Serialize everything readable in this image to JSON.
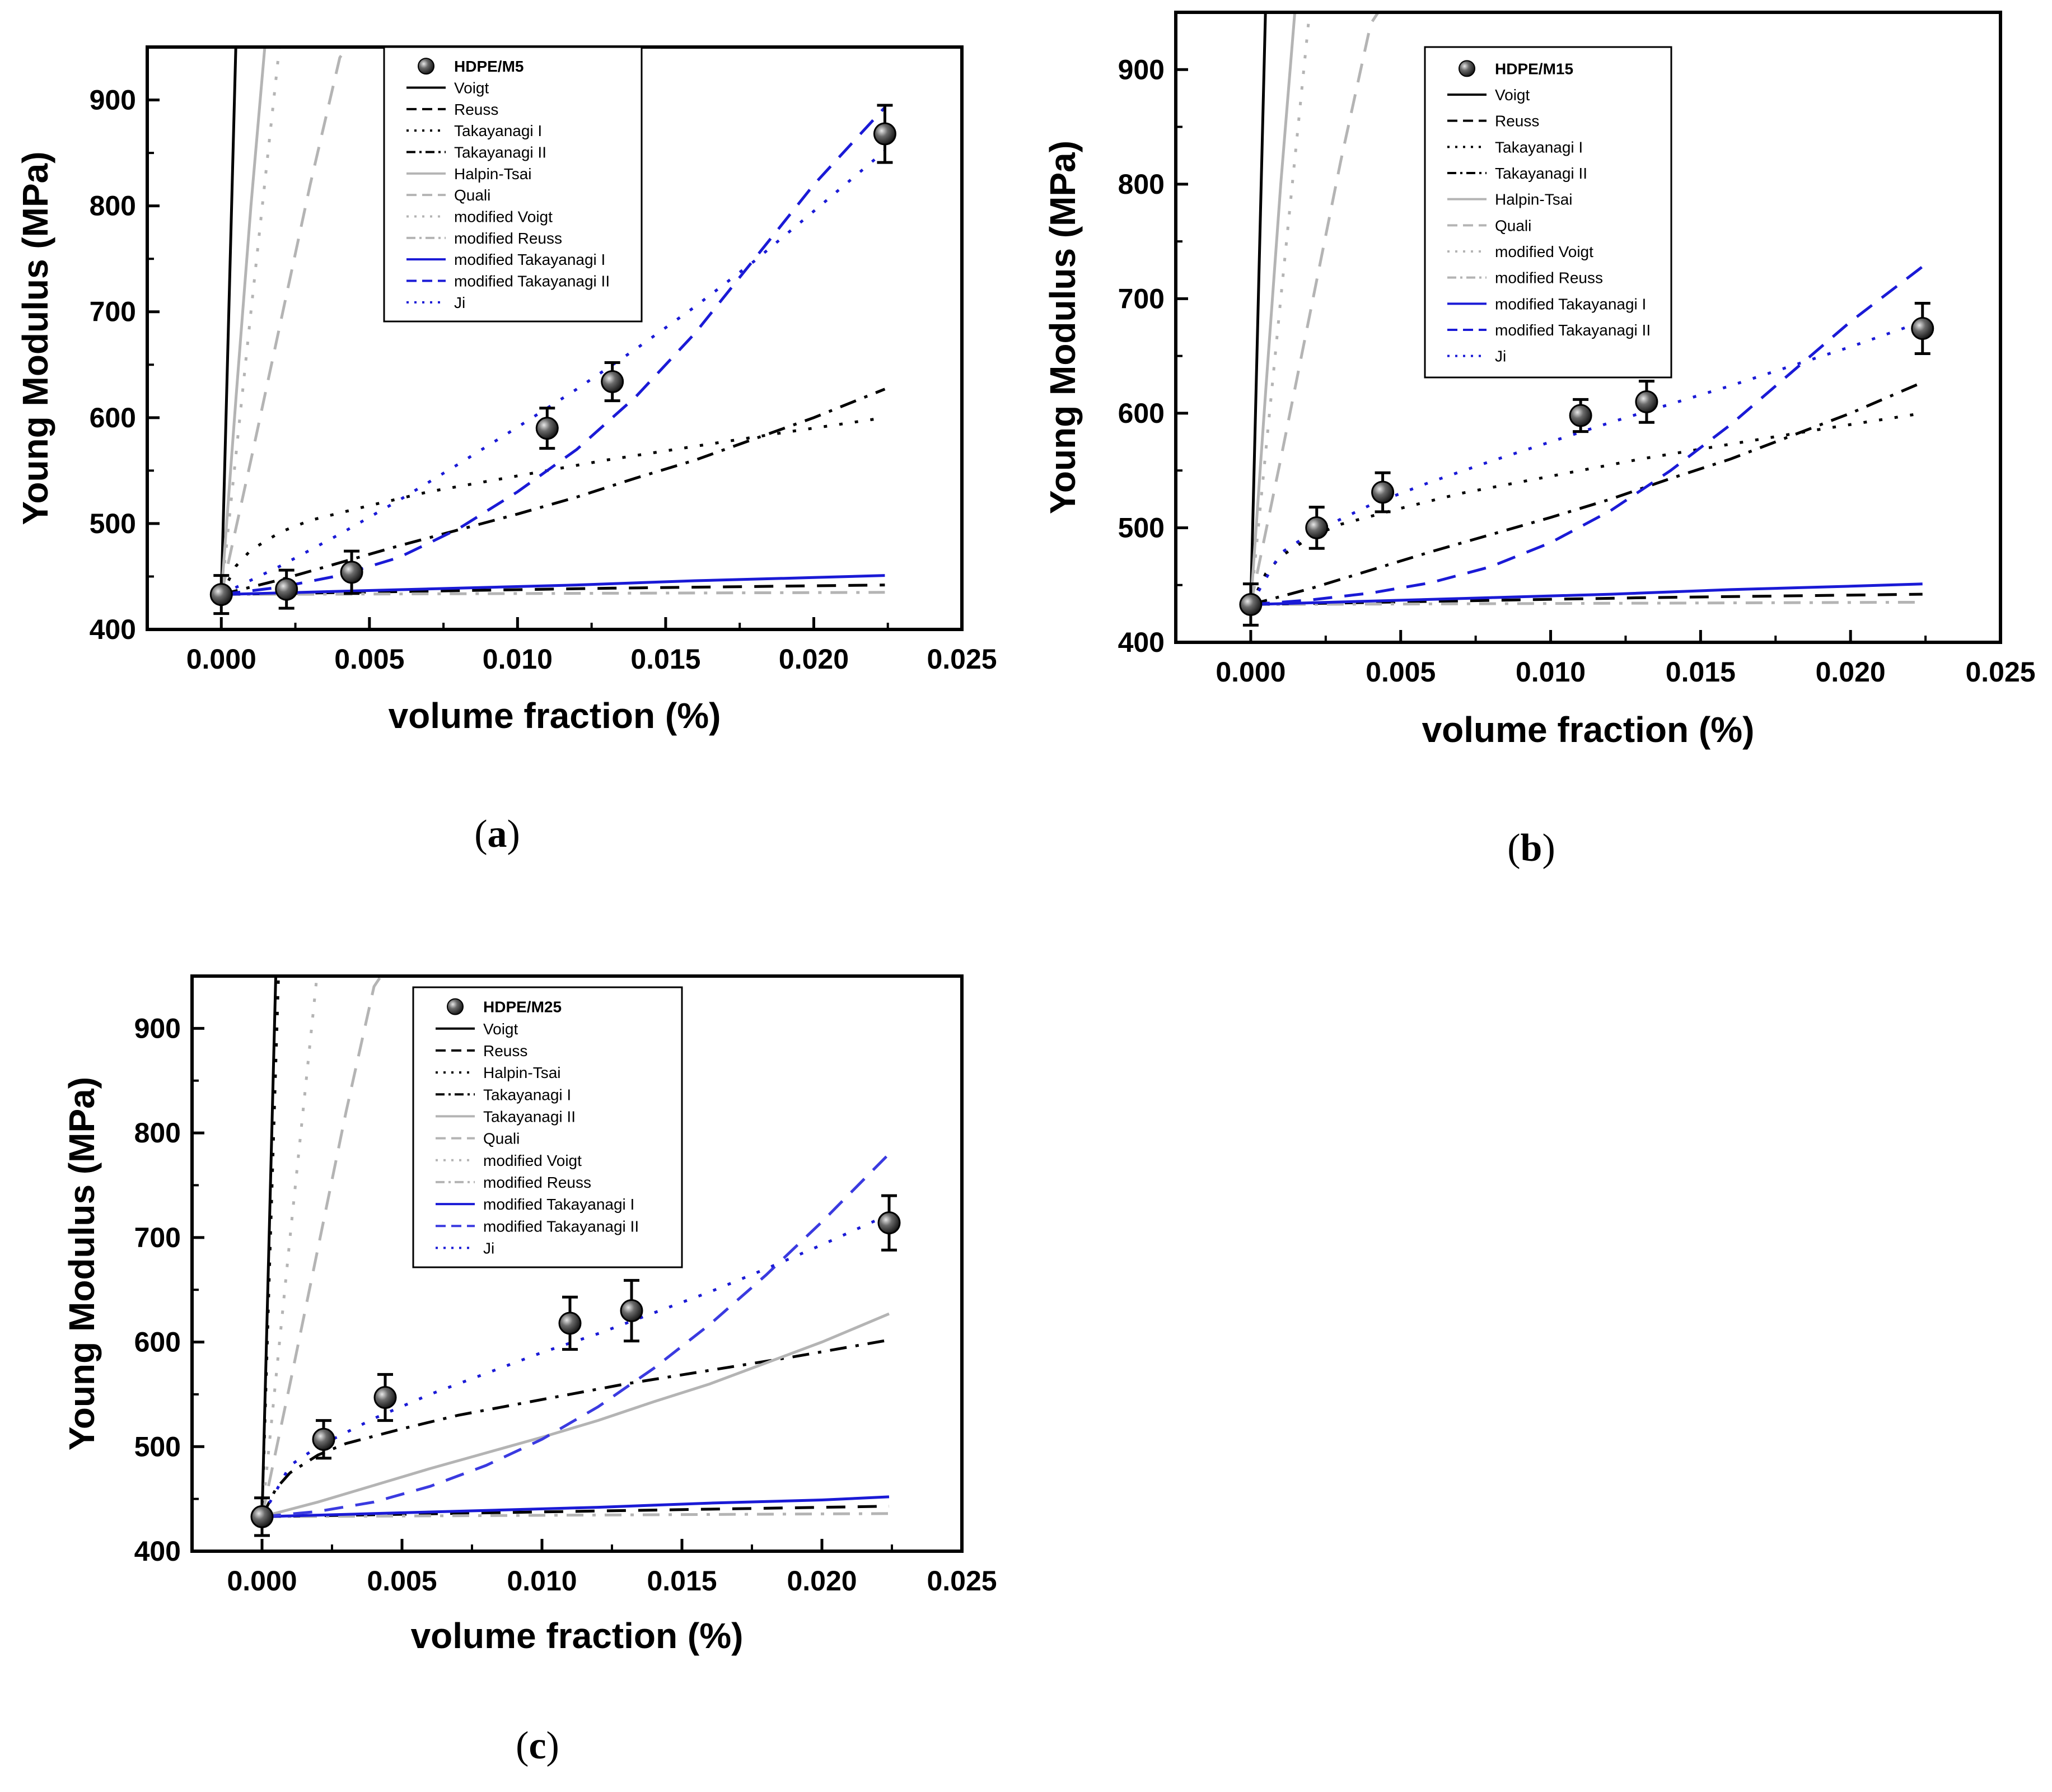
{
  "figure_captions": [
    {
      "open": "(",
      "letter": "a",
      "close": ")"
    },
    {
      "open": "(",
      "letter": "b",
      "close": ")"
    },
    {
      "open": "(",
      "letter": "c",
      "close": ")"
    }
  ],
  "chart_data": [
    {
      "id": "a",
      "type": "line+scatter",
      "xlabel": "volume fraction (%)",
      "ylabel": "Young Modulus (MPa)",
      "xlim": [
        -0.0025,
        0.025
      ],
      "ylim": [
        400,
        950
      ],
      "xticks": [
        0.0,
        0.005,
        0.01,
        0.015,
        0.02,
        0.025
      ],
      "xtick_labels": [
        "0.000",
        "0.005",
        "0.010",
        "0.015",
        "0.020",
        "0.025"
      ],
      "yticks": [
        400,
        500,
        600,
        700,
        800,
        900
      ],
      "ytick_labels": [
        "400",
        "500",
        "600",
        "700",
        "800",
        "900"
      ],
      "legend_position": "top-center",
      "experimental": {
        "name": "HDPE/M5",
        "x": [
          0.0,
          0.0022,
          0.0044,
          0.011,
          0.0132,
          0.0224
        ],
        "y": [
          433,
          438,
          454,
          590,
          634,
          868
        ],
        "err": [
          18,
          18,
          20,
          19,
          18,
          27
        ]
      },
      "series": [
        {
          "name": "Voigt",
          "color": "#000000",
          "dash": "solid",
          "x": [
            0,
            0.0005
          ],
          "y": [
            433,
            960
          ]
        },
        {
          "name": "Reuss",
          "color": "#000000",
          "dash": "dash",
          "x": [
            0,
            0.0022,
            0.0044,
            0.011,
            0.0132,
            0.0224
          ],
          "y": [
            433,
            434,
            435,
            438,
            439,
            442
          ]
        },
        {
          "name": "Takayanagi I",
          "color": "#000000",
          "dash": "dot",
          "x": [
            0,
            0.0005,
            0.001,
            0.002,
            0.003,
            0.005,
            0.007,
            0.01,
            0.013,
            0.016,
            0.019,
            0.0224
          ],
          "y": [
            433,
            460,
            475,
            492,
            503,
            517,
            530,
            545,
            560,
            573,
            586,
            600
          ]
        },
        {
          "name": "Takayanagi II",
          "color": "#000000",
          "dash": "dashdot",
          "x": [
            0,
            0.002,
            0.004,
            0.006,
            0.008,
            0.01,
            0.012,
            0.014,
            0.016,
            0.018,
            0.02,
            0.0224
          ],
          "y": [
            433,
            447,
            463,
            479,
            494,
            509,
            525,
            543,
            560,
            580,
            600,
            627
          ]
        },
        {
          "name": "Halpin-Tsai",
          "color": "#b4b4b4",
          "dash": "solid",
          "x": [
            0,
            0.0005,
            0.001,
            0.0015
          ],
          "y": [
            433,
            620,
            800,
            960
          ]
        },
        {
          "name": "Quali",
          "color": "#b4b4b4",
          "dash": "dash",
          "x": [
            0,
            0.001,
            0.002,
            0.003,
            0.004,
            0.0045
          ],
          "y": [
            433,
            560,
            690,
            820,
            940,
            960
          ]
        },
        {
          "name": "modified Voigt",
          "color": "#b4b4b4",
          "dash": "dot",
          "x": [
            0,
            0.001,
            0.0015,
            0.002
          ],
          "y": [
            433,
            700,
            830,
            960
          ]
        },
        {
          "name": "modified Reuss",
          "color": "#b4b4b4",
          "dash": "dashdot",
          "x": [
            0,
            0.0224
          ],
          "y": [
            433,
            435
          ]
        },
        {
          "name": "modified Takayanagi I",
          "color": "#1a1ad6",
          "dash": "solid",
          "x": [
            0,
            0.004,
            0.008,
            0.012,
            0.016,
            0.02,
            0.0224
          ],
          "y": [
            433,
            436,
            439,
            442,
            446,
            449,
            451
          ]
        },
        {
          "name": "modified Takayanagi II",
          "color": "#1a1ad6",
          "dash": "dash",
          "x": [
            0,
            0.002,
            0.004,
            0.006,
            0.008,
            0.01,
            0.012,
            0.014,
            0.016,
            0.018,
            0.02,
            0.0224
          ],
          "y": [
            433,
            440,
            451,
            468,
            495,
            530,
            570,
            620,
            680,
            750,
            820,
            893
          ]
        },
        {
          "name": "Ji",
          "color": "#1a1ad6",
          "dash": "dot",
          "x": [
            0,
            0.002,
            0.004,
            0.006,
            0.008,
            0.01,
            0.012,
            0.014,
            0.016,
            0.018,
            0.02,
            0.0224
          ],
          "y": [
            433,
            460,
            490,
            522,
            556,
            591,
            627,
            665,
            705,
            748,
            795,
            852
          ]
        }
      ]
    },
    {
      "id": "b",
      "type": "line+scatter",
      "xlabel": "volume fraction (%)",
      "ylabel": "Young Modulus (MPa)",
      "xlim": [
        -0.0025,
        0.025
      ],
      "ylim": [
        400,
        950
      ],
      "xticks": [
        0.0,
        0.005,
        0.01,
        0.015,
        0.02,
        0.025
      ],
      "xtick_labels": [
        "0.000",
        "0.005",
        "0.010",
        "0.015",
        "0.020",
        "0.025"
      ],
      "yticks": [
        400,
        500,
        600,
        700,
        800,
        900
      ],
      "ytick_labels": [
        "400",
        "500",
        "600",
        "700",
        "800",
        "900"
      ],
      "legend_position": "top-center",
      "experimental": {
        "name": "HDPE/M15",
        "x": [
          0.0,
          0.0022,
          0.0044,
          0.011,
          0.0132,
          0.0224
        ],
        "y": [
          433,
          500,
          531,
          598,
          610,
          674
        ],
        "err": [
          18,
          18,
          17,
          14,
          18,
          22
        ]
      },
      "series": [
        {
          "name": "Voigt",
          "color": "#000000",
          "dash": "solid",
          "x": [
            0,
            0.0005
          ],
          "y": [
            433,
            960
          ]
        },
        {
          "name": "Reuss",
          "color": "#000000",
          "dash": "dash",
          "x": [
            0,
            0.0022,
            0.0044,
            0.011,
            0.0132,
            0.0224
          ],
          "y": [
            433,
            434,
            435,
            438,
            439,
            442
          ]
        },
        {
          "name": "Takayanagi I",
          "color": "#000000",
          "dash": "dot",
          "x": [
            0,
            0.0005,
            0.001,
            0.002,
            0.003,
            0.005,
            0.007,
            0.01,
            0.013,
            0.016,
            0.019,
            0.0224
          ],
          "y": [
            433,
            460,
            475,
            492,
            503,
            517,
            530,
            545,
            560,
            573,
            586,
            600
          ]
        },
        {
          "name": "Takayanagi II",
          "color": "#000000",
          "dash": "dashdot",
          "x": [
            0,
            0.002,
            0.004,
            0.006,
            0.008,
            0.01,
            0.012,
            0.014,
            0.016,
            0.018,
            0.02,
            0.0224
          ],
          "y": [
            433,
            447,
            463,
            479,
            494,
            509,
            525,
            543,
            560,
            580,
            600,
            627
          ]
        },
        {
          "name": "Halpin-Tsai",
          "color": "#b4b4b4",
          "dash": "solid",
          "x": [
            0,
            0.0005,
            0.001,
            0.0015
          ],
          "y": [
            433,
            620,
            800,
            960
          ]
        },
        {
          "name": "Quali",
          "color": "#b4b4b4",
          "dash": "dash",
          "x": [
            0,
            0.001,
            0.002,
            0.003,
            0.004,
            0.0045
          ],
          "y": [
            433,
            560,
            690,
            820,
            940,
            960
          ]
        },
        {
          "name": "modified Voigt",
          "color": "#b4b4b4",
          "dash": "dot",
          "x": [
            0,
            0.001,
            0.0015,
            0.002
          ],
          "y": [
            433,
            700,
            830,
            960
          ]
        },
        {
          "name": "modified Reuss",
          "color": "#b4b4b4",
          "dash": "dashdot",
          "x": [
            0,
            0.0224
          ],
          "y": [
            433,
            435
          ]
        },
        {
          "name": "modified Takayanagi I",
          "color": "#1a1ad6",
          "dash": "solid",
          "x": [
            0,
            0.004,
            0.008,
            0.012,
            0.016,
            0.02,
            0.0224
          ],
          "y": [
            433,
            436,
            439,
            442,
            446,
            449,
            451
          ]
        },
        {
          "name": "modified Takayanagi II",
          "color": "#1a1ad6",
          "dash": "dash",
          "x": [
            0,
            0.002,
            0.004,
            0.006,
            0.008,
            0.01,
            0.012,
            0.014,
            0.016,
            0.018,
            0.02,
            0.0224
          ],
          "y": [
            433,
            437,
            443,
            452,
            466,
            487,
            515,
            550,
            590,
            635,
            680,
            728
          ]
        },
        {
          "name": "Ji",
          "color": "#1a1ad6",
          "dash": "dot",
          "x": [
            0,
            0.001,
            0.002,
            0.004,
            0.006,
            0.008,
            0.01,
            0.012,
            0.014,
            0.016,
            0.018,
            0.02,
            0.0224
          ],
          "y": [
            433,
            478,
            495,
            520,
            540,
            558,
            575,
            592,
            608,
            624,
            641,
            658,
            680
          ]
        }
      ]
    },
    {
      "id": "c",
      "type": "line+scatter",
      "xlabel": "volume fraction (%)",
      "ylabel": "Young Modulus (MPa)",
      "xlim": [
        -0.0025,
        0.025
      ],
      "ylim": [
        400,
        950
      ],
      "xticks": [
        0.0,
        0.005,
        0.01,
        0.015,
        0.02,
        0.025
      ],
      "xtick_labels": [
        "0.000",
        "0.005",
        "0.010",
        "0.015",
        "0.020",
        "0.025"
      ],
      "yticks": [
        400,
        500,
        600,
        700,
        800,
        900
      ],
      "ytick_labels": [
        "400",
        "500",
        "600",
        "700",
        "800",
        "900"
      ],
      "legend_position": "top-center",
      "experimental": {
        "name": "HDPE/M25",
        "x": [
          0.0,
          0.0022,
          0.0044,
          0.011,
          0.0132,
          0.0224
        ],
        "y": [
          433,
          507,
          547,
          618,
          630,
          714
        ],
        "err": [
          18,
          18,
          22,
          25,
          29,
          26
        ]
      },
      "series": [
        {
          "name": "Voigt",
          "color": "#000000",
          "dash": "solid",
          "x": [
            0,
            0.0005
          ],
          "y": [
            433,
            960
          ]
        },
        {
          "name": "Reuss",
          "color": "#000000",
          "dash": "dash",
          "x": [
            0,
            0.0022,
            0.0044,
            0.011,
            0.0132,
            0.0224
          ],
          "y": [
            433,
            434,
            435,
            438,
            439,
            443
          ]
        },
        {
          "name": "Halpin-Tsai",
          "color": "#000000",
          "dash": "dot",
          "x": [
            0,
            0.0003,
            0.0006
          ],
          "y": [
            433,
            700,
            960
          ]
        },
        {
          "name": "Takayanagi I",
          "color": "#000000",
          "dash": "dashdot",
          "x": [
            0,
            0.0005,
            0.001,
            0.002,
            0.003,
            0.005,
            0.007,
            0.01,
            0.013,
            0.016,
            0.019,
            0.0224
          ],
          "y": [
            433,
            460,
            475,
            492,
            503,
            517,
            530,
            545,
            560,
            573,
            586,
            602
          ]
        },
        {
          "name": "Takayanagi II",
          "color": "#b4b4b4",
          "dash": "solid",
          "x": [
            0,
            0.002,
            0.004,
            0.006,
            0.008,
            0.01,
            0.012,
            0.014,
            0.016,
            0.018,
            0.02,
            0.0224
          ],
          "y": [
            433,
            447,
            463,
            479,
            494,
            509,
            525,
            543,
            560,
            580,
            600,
            627
          ]
        },
        {
          "name": "Quali",
          "color": "#b4b4b4",
          "dash": "dash",
          "x": [
            0,
            0.001,
            0.002,
            0.003,
            0.004,
            0.0045
          ],
          "y": [
            433,
            560,
            690,
            820,
            940,
            960
          ]
        },
        {
          "name": "modified Voigt",
          "color": "#b4b4b4",
          "dash": "dot",
          "x": [
            0,
            0.001,
            0.0015,
            0.002
          ],
          "y": [
            433,
            700,
            830,
            960
          ]
        },
        {
          "name": "modified Reuss",
          "color": "#b4b4b4",
          "dash": "dashdot",
          "x": [
            0,
            0.0224
          ],
          "y": [
            433,
            436
          ]
        },
        {
          "name": "modified Takayanagi I",
          "color": "#1a1ad6",
          "dash": "solid",
          "x": [
            0,
            0.004,
            0.008,
            0.012,
            0.016,
            0.02,
            0.0224
          ],
          "y": [
            433,
            436,
            439,
            442,
            446,
            449,
            452
          ]
        },
        {
          "name": "modified Takayanagi II",
          "color": "#3a3ae0",
          "dash": "dash",
          "x": [
            0,
            0.002,
            0.004,
            0.006,
            0.008,
            0.01,
            0.012,
            0.014,
            0.016,
            0.018,
            0.02,
            0.0224
          ],
          "y": [
            433,
            438,
            447,
            462,
            482,
            507,
            538,
            575,
            617,
            664,
            715,
            780
          ]
        },
        {
          "name": "Ji",
          "color": "#1a1ad6",
          "dash": "dot",
          "x": [
            0,
            0.001,
            0.002,
            0.004,
            0.006,
            0.008,
            0.01,
            0.012,
            0.014,
            0.016,
            0.018,
            0.02,
            0.0224
          ],
          "y": [
            433,
            482,
            500,
            527,
            550,
            570,
            590,
            608,
            628,
            648,
            670,
            693,
            722
          ]
        }
      ]
    }
  ]
}
